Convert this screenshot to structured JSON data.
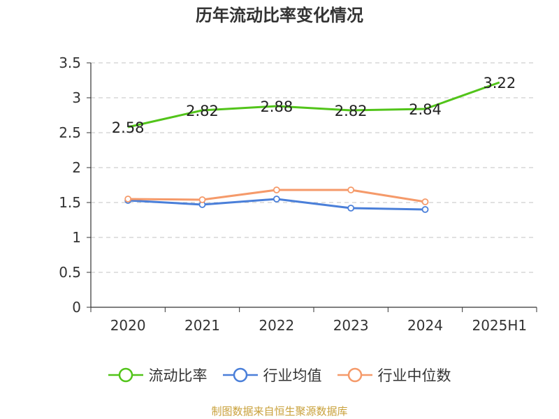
{
  "chart_data": {
    "type": "line",
    "title": "历年流动比率变化情况",
    "categories": [
      "2020",
      "2021",
      "2022",
      "2023",
      "2024",
      "2025H1"
    ],
    "ylim": [
      0,
      3.5
    ],
    "yticks": [
      "0",
      "0.5",
      "1",
      "1.5",
      "2",
      "2.5",
      "3",
      "3.5"
    ],
    "grid": true,
    "legend_position": "bottom",
    "series": [
      {
        "name": "流动比率",
        "color": "#52c41a",
        "values": [
          2.58,
          2.82,
          2.88,
          2.82,
          2.84,
          3.22
        ],
        "labels": [
          "2.58",
          "2.82",
          "2.88",
          "2.82",
          "2.84",
          "3.22"
        ],
        "markers": false
      },
      {
        "name": "行业均值",
        "color": "#4a7fd9",
        "values": [
          1.53,
          1.47,
          1.55,
          1.42,
          1.4,
          null
        ],
        "markers": true
      },
      {
        "name": "行业中位数",
        "color": "#f59a6a",
        "values": [
          1.55,
          1.54,
          1.68,
          1.68,
          1.51,
          null
        ],
        "markers": true
      }
    ]
  },
  "source": "制图数据来自恒生聚源数据库"
}
